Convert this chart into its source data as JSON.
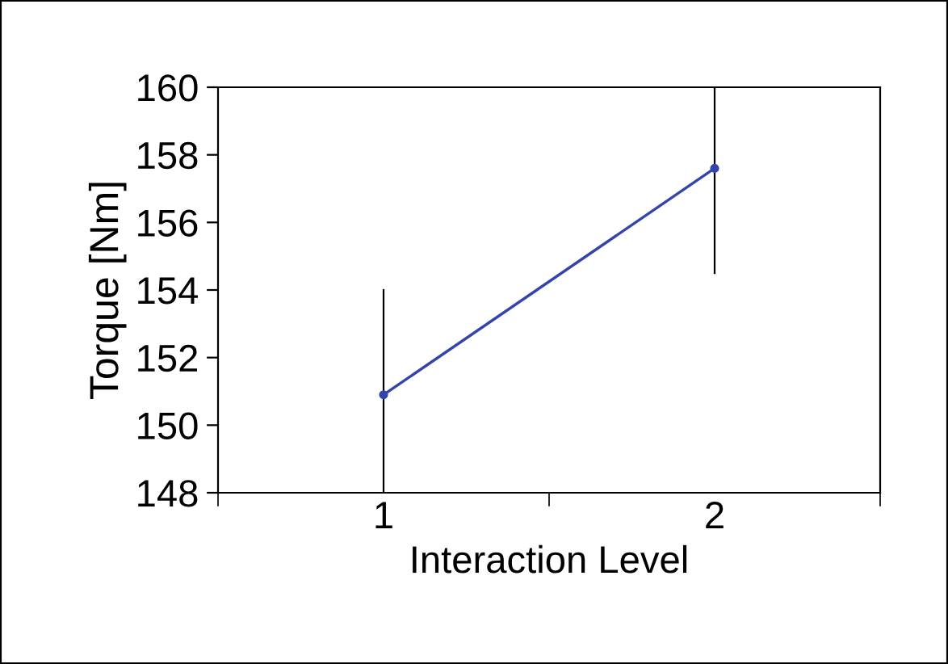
{
  "chart_data": {
    "type": "line",
    "xlabel": "Interaction Level",
    "ylabel": "Torque [Nm]",
    "categories": [
      "1",
      "2"
    ],
    "series": [
      {
        "color": "#3344aa",
        "values": [
          150.9,
          157.6
        ],
        "errors": [
          [
            148.0,
            154.0
          ],
          [
            154.5,
            160.0
          ]
        ]
      }
    ],
    "ylim": [
      148,
      160
    ],
    "yticks": [
      148,
      150,
      152,
      154,
      156,
      158,
      160
    ],
    "grid": false,
    "legend": false,
    "marker": "circle",
    "line_style": "solid"
  }
}
